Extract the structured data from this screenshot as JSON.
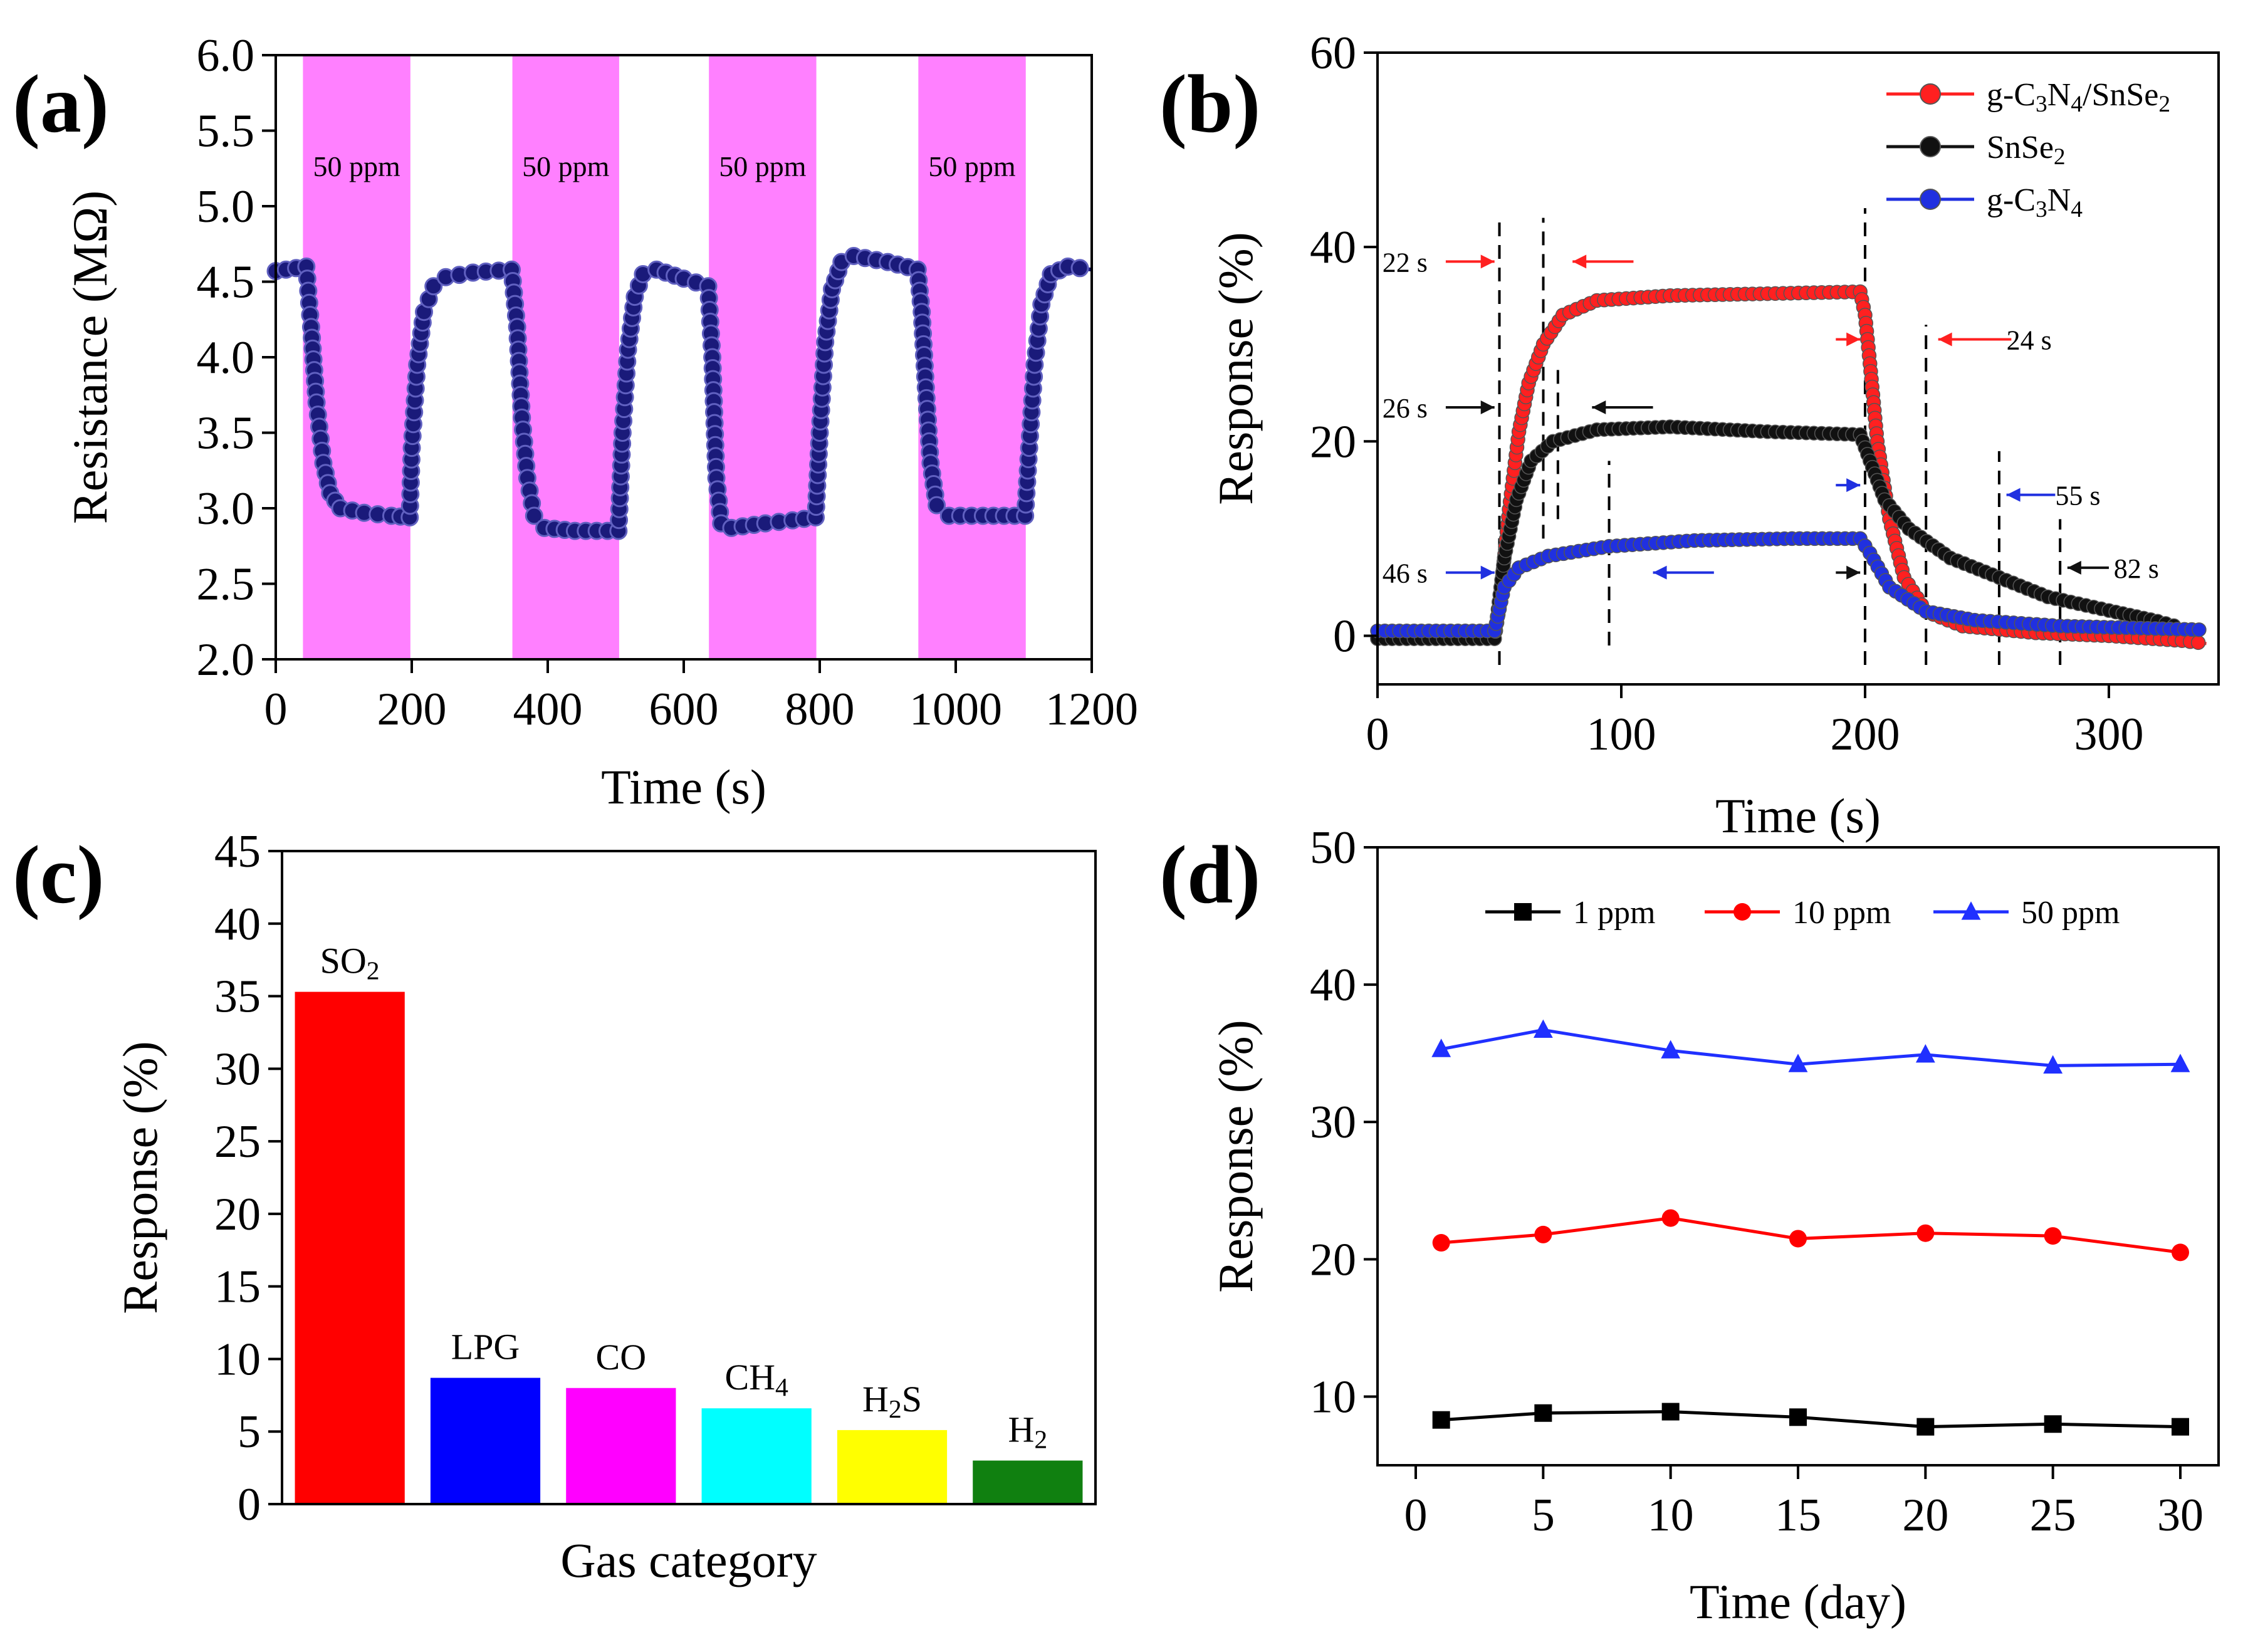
{
  "chart_data": [
    {
      "id": "a",
      "panel_label": "(a)",
      "type": "line",
      "xlabel": "Time (s)",
      "ylabel": "Resistance (MΩ)",
      "xlim": [
        0,
        1200
      ],
      "ylim": [
        2.0,
        6.0
      ],
      "xticks": [
        0,
        200,
        400,
        600,
        800,
        1000,
        1200
      ],
      "yticks": [
        2.0,
        2.5,
        3.0,
        3.5,
        4.0,
        4.5,
        5.0,
        5.5,
        6.0
      ],
      "shaded_regions": [
        {
          "start": 40,
          "end": 198,
          "label": "50 ppm"
        },
        {
          "start": 348,
          "end": 505,
          "label": "50 ppm"
        },
        {
          "start": 637,
          "end": 795,
          "label": "50 ppm"
        },
        {
          "start": 945,
          "end": 1103,
          "label": "50 ppm"
        }
      ],
      "series": [
        {
          "name": "resistance",
          "color": "#1a1a7a",
          "points": [
            [
              0,
              4.57
            ],
            [
              45,
              4.6
            ],
            [
              52,
              4.2
            ],
            [
              60,
              3.7
            ],
            [
              70,
              3.3
            ],
            [
              80,
              3.1
            ],
            [
              95,
              3.0
            ],
            [
              130,
              2.97
            ],
            [
              170,
              2.95
            ],
            [
              197,
              2.94
            ],
            [
              200,
              3.4
            ],
            [
              208,
              3.95
            ],
            [
              218,
              4.3
            ],
            [
              232,
              4.47
            ],
            [
              250,
              4.53
            ],
            [
              290,
              4.56
            ],
            [
              347,
              4.58
            ],
            [
              355,
              4.2
            ],
            [
              362,
              3.6
            ],
            [
              370,
              3.2
            ],
            [
              380,
              2.95
            ],
            [
              395,
              2.87
            ],
            [
              440,
              2.85
            ],
            [
              504,
              2.85
            ],
            [
              510,
              3.5
            ],
            [
              518,
              4.05
            ],
            [
              528,
              4.4
            ],
            [
              540,
              4.55
            ],
            [
              560,
              4.58
            ],
            [
              600,
              4.52
            ],
            [
              636,
              4.47
            ],
            [
              642,
              4.0
            ],
            [
              648,
              3.2
            ],
            [
              655,
              2.9
            ],
            [
              670,
              2.87
            ],
            [
              720,
              2.9
            ],
            [
              760,
              2.92
            ],
            [
              794,
              2.94
            ],
            [
              800,
              3.5
            ],
            [
              808,
              4.1
            ],
            [
              818,
              4.45
            ],
            [
              832,
              4.63
            ],
            [
              850,
              4.67
            ],
            [
              900,
              4.63
            ],
            [
              944,
              4.58
            ],
            [
              950,
              4.3
            ],
            [
              956,
              3.8
            ],
            [
              963,
              3.3
            ],
            [
              972,
              3.02
            ],
            [
              990,
              2.95
            ],
            [
              1040,
              2.95
            ],
            [
              1102,
              2.95
            ],
            [
              1108,
              3.4
            ],
            [
              1116,
              3.95
            ],
            [
              1126,
              4.35
            ],
            [
              1140,
              4.55
            ],
            [
              1165,
              4.6
            ],
            [
              1200,
              4.58
            ]
          ]
        }
      ]
    },
    {
      "id": "b",
      "panel_label": "(b)",
      "type": "line",
      "xlabel": "Time (s)",
      "ylabel": "Response (%)",
      "xlim": [
        0,
        345
      ],
      "ylim": [
        -5,
        60
      ],
      "xticks": [
        0,
        100,
        200,
        300
      ],
      "yticks": [
        0,
        20,
        40,
        60
      ],
      "series": [
        {
          "name": "g-C3N4/SnSe2",
          "label_parts": [
            "g-C",
            "3",
            "N",
            "4",
            "/SnSe",
            "2"
          ],
          "color": "#ff2020",
          "points": [
            [
              0,
              -0.3
            ],
            [
              48,
              -0.3
            ],
            [
              50,
              3
            ],
            [
              54,
              13
            ],
            [
              58,
              21
            ],
            [
              62,
              26
            ],
            [
              68,
              30
            ],
            [
              76,
              33
            ],
            [
              90,
              34.5
            ],
            [
              120,
              35
            ],
            [
              160,
              35.2
            ],
            [
              198,
              35.4
            ],
            [
              200,
              33
            ],
            [
              202,
              28
            ],
            [
              205,
              20
            ],
            [
              210,
              12
            ],
            [
              216,
              6
            ],
            [
              225,
              2.5
            ],
            [
              240,
              1.0
            ],
            [
              270,
              0.3
            ],
            [
              300,
              0
            ],
            [
              330,
              -0.5
            ],
            [
              340,
              -0.8
            ]
          ]
        },
        {
          "name": "SnSe2",
          "label_parts": [
            "SnSe",
            "2"
          ],
          "color": "#111111",
          "points": [
            [
              0,
              -0.3
            ],
            [
              48,
              -0.3
            ],
            [
              52,
              8
            ],
            [
              57,
              14
            ],
            [
              63,
              18
            ],
            [
              72,
              20
            ],
            [
              90,
              21.2
            ],
            [
              120,
              21.5
            ],
            [
              160,
              21
            ],
            [
              198,
              20.7
            ],
            [
              202,
              18
            ],
            [
              208,
              14
            ],
            [
              218,
              11
            ],
            [
              235,
              8
            ],
            [
              255,
              6
            ],
            [
              275,
              4
            ],
            [
              300,
              2.6
            ],
            [
              320,
              1.5
            ],
            [
              330,
              0.8
            ]
          ]
        },
        {
          "name": "g-C3N4",
          "label_parts": [
            "g-C",
            "3",
            "N",
            "4"
          ],
          "color": "#2030e0",
          "points": [
            [
              0,
              0.5
            ],
            [
              48,
              0.5
            ],
            [
              52,
              5
            ],
            [
              58,
              7
            ],
            [
              70,
              8.2
            ],
            [
              95,
              9.2
            ],
            [
              130,
              9.8
            ],
            [
              170,
              10
            ],
            [
              198,
              10
            ],
            [
              202,
              8.5
            ],
            [
              210,
              5
            ],
            [
              225,
              2.5
            ],
            [
              245,
              1.6
            ],
            [
              280,
              1.0
            ],
            [
              310,
              0.8
            ],
            [
              340,
              0.6
            ]
          ]
        }
      ],
      "vlines": [
        50,
        68,
        74,
        95,
        200,
        225,
        255,
        280
      ],
      "annotations": [
        {
          "text": "22 s",
          "x": 2,
          "y": 38.5,
          "color": "#ff2020"
        },
        {
          "text": "26 s",
          "x": 2,
          "y": 23.5,
          "color": "#111111"
        },
        {
          "text": "46 s",
          "x": 2,
          "y": 6.5,
          "color": "#2030e0"
        },
        {
          "text": "24 s",
          "x": 258,
          "y": 30.5,
          "color": "#ff2020"
        },
        {
          "text": "55 s",
          "x": 278,
          "y": 14.5,
          "color": "#2030e0"
        },
        {
          "text": "82 s",
          "x": 302,
          "y": 7.0,
          "color": "#111111"
        }
      ]
    },
    {
      "id": "c",
      "panel_label": "(c)",
      "type": "bar",
      "xlabel": "Gas category",
      "ylabel": "Response (%)",
      "ylim": [
        0,
        45
      ],
      "yticks": [
        0,
        5,
        10,
        15,
        20,
        25,
        30,
        35,
        40,
        45
      ],
      "categories": [
        "SO2",
        "LPG",
        "CO",
        "CH4",
        "H2S",
        "H2"
      ],
      "values": [
        35.3,
        8.7,
        8.0,
        6.6,
        5.1,
        3.0
      ],
      "colors": [
        "#ff0000",
        "#0000ff",
        "#ff00ff",
        "#00ffff",
        "#ffff00",
        "#108010"
      ]
    },
    {
      "id": "d",
      "panel_label": "(d)",
      "type": "line",
      "xlabel": "Time (day)",
      "ylabel": "Response (%)",
      "xlim": [
        -1.5,
        31.5
      ],
      "ylim": [
        5,
        50
      ],
      "xticks": [
        0,
        5,
        10,
        15,
        20,
        25,
        30
      ],
      "yticks": [
        10,
        20,
        30,
        40,
        50
      ],
      "x": [
        1,
        5,
        10,
        15,
        20,
        25,
        30
      ],
      "series": [
        {
          "name": "1 ppm",
          "color": "#000000",
          "marker": "square",
          "values": [
            8.3,
            8.8,
            8.9,
            8.5,
            7.8,
            8.0,
            7.8
          ]
        },
        {
          "name": "10 ppm",
          "color": "#ff0000",
          "marker": "circle",
          "values": [
            21.2,
            21.8,
            23.0,
            21.5,
            21.9,
            21.7,
            20.5
          ]
        },
        {
          "name": "50 ppm",
          "color": "#2030ff",
          "marker": "triangle",
          "values": [
            35.3,
            36.7,
            35.2,
            34.2,
            34.9,
            34.1,
            34.2
          ]
        }
      ]
    }
  ]
}
